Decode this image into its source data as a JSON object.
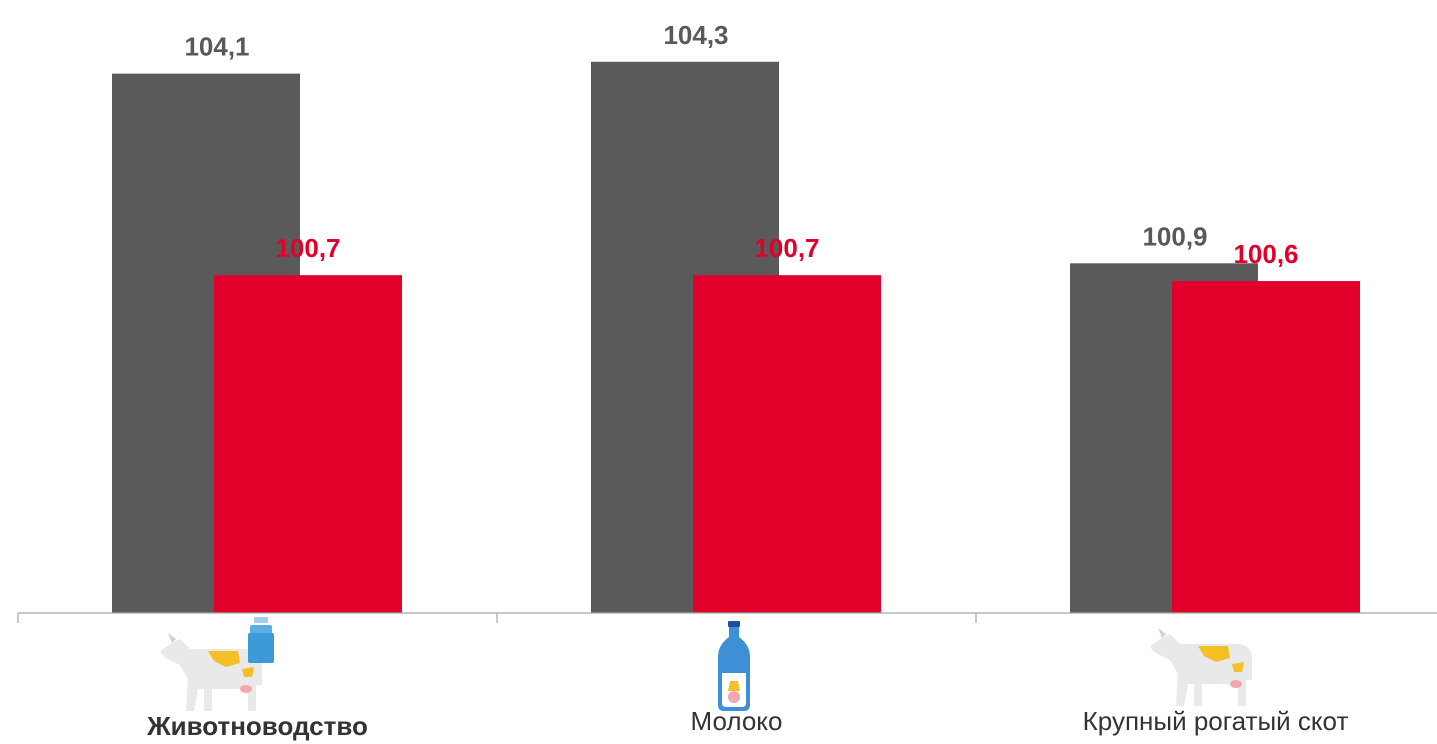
{
  "chart_data": {
    "type": "bar",
    "categories": [
      "Животноводство",
      "Молоко",
      "Крупный рогатый скот"
    ],
    "category_bold": [
      true,
      false,
      false
    ],
    "series": [
      {
        "values": [
          104.1,
          104.3,
          100.9
        ],
        "labels": [
          "104,1",
          "104,3",
          "100,9"
        ],
        "color": "#5a5a5a",
        "label_color": "#595959"
      },
      {
        "values": [
          100.7,
          100.7,
          100.6
        ],
        "labels": [
          "100,7",
          "100,7",
          "100,6"
        ],
        "color": "#e2002a",
        "label_color": "#e2002a"
      }
    ],
    "ylim": [
      95.0,
      104.6
    ],
    "grid": false,
    "legend": "none",
    "category_icons": [
      [
        "cow-icon",
        "milk-can-icon"
      ],
      [
        "milk-bottle-icon"
      ],
      [
        "cow-icon"
      ]
    ]
  }
}
